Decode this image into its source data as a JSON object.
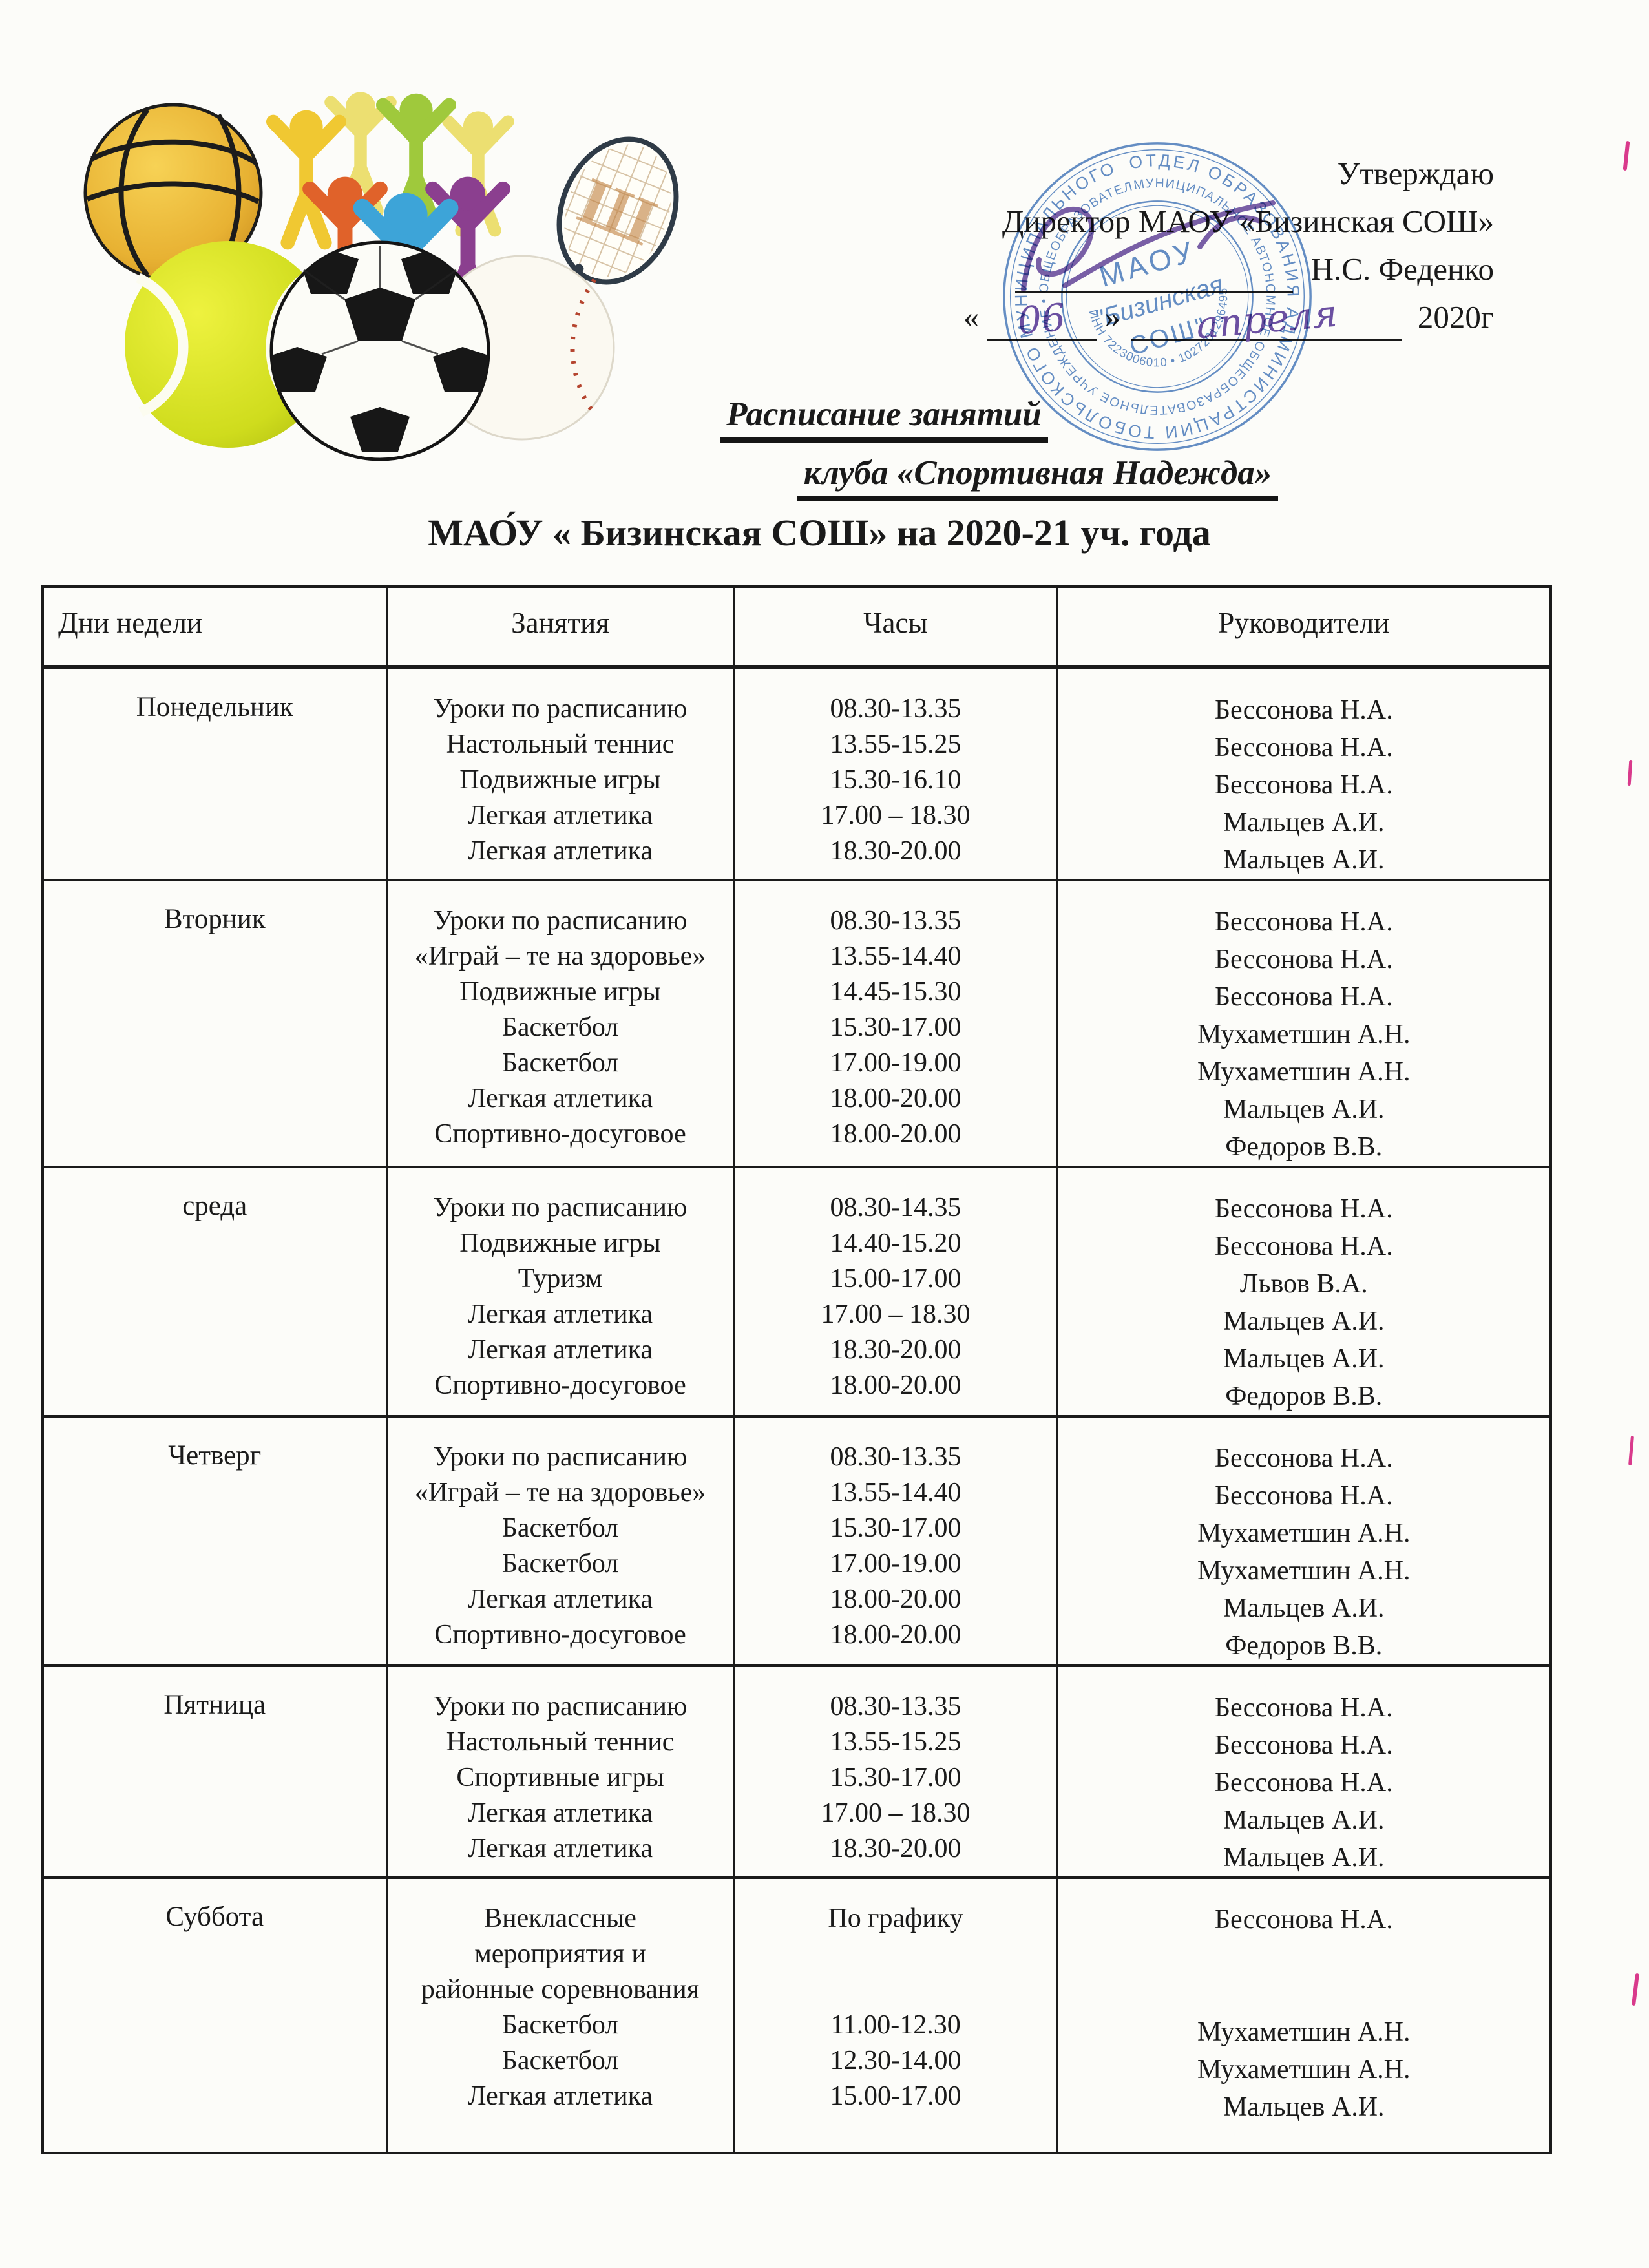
{
  "colors": {
    "paper": "#fcfcf9",
    "ink": "#1a1a1a",
    "stamp_blue": "#4f7fc1",
    "signature_purple": "#6b4fa1",
    "table_border": "#1b1b1b"
  },
  "artwork": {
    "items": [
      "basketball",
      "people-figures",
      "tennis-racket",
      "tennis-ball",
      "baseball",
      "soccer-ball"
    ],
    "racket_letter": "Ш"
  },
  "approval": {
    "approve_line": "Утверждаю",
    "director_line": "Директор МАОУ «Бизинская СОШ»",
    "director_name": "Н.С. Феденко",
    "quote_open": "«",
    "quote_close": "»",
    "day_handwritten": "06",
    "month_handwritten": "апреля",
    "year": "2020г"
  },
  "stamp": {
    "ring_outer": "ОТДЕЛ ОБРАЗОВАНИЯ АДМИНИСТРАЦИИ ТОБОЛЬСКОГО МУНИЦИПАЛЬНОГО РАЙОНА • ",
    "ring_inner": "МУНИЦИПАЛЬНОЕ АВТОНОМНОЕ ОБЩЕОБРАЗОВАТЕЛЬНОЕ УЧРЕЖДЕНИЕ • ОБЩЕОБРАЗОВАТЕЛЬНАЯ ШКОЛА ",
    "ring_numbers": "ИНН 7223006010 • 1027201296495 •",
    "center_line1": "МАОУ",
    "center_line2": "\"Бизинская",
    "center_line3": "СОШ\""
  },
  "title": {
    "line1": "Расписание  занятий",
    "line2": "клуба «Спортивная Надежда»",
    "line3": "МАО́У « Бизинская СОШ» на 2020-21 уч. года"
  },
  "table": {
    "headers": [
      "Дни недели",
      "Занятия",
      "Часы",
      "Руководители"
    ],
    "rows": [
      {
        "day": "Понедельник",
        "activities": [
          "Уроки по расписанию",
          "Настольный теннис",
          "Подвижные игры",
          "Легкая атлетика",
          "Легкая атлетика"
        ],
        "hours": [
          "08.30-13.35",
          "13.55-15.25",
          "15.30-16.10",
          "17.00 – 18.30",
          "18.30-20.00"
        ],
        "leaders": [
          "Бессонова Н.А.",
          "Бессонова Н.А.",
          "Бессонова Н.А.",
          "Мальцев А.И.",
          "Мальцев А.И."
        ]
      },
      {
        "day": "Вторник",
        "activities": [
          "Уроки по расписанию",
          "«Играй – те на здоровье»",
          "Подвижные игры",
          "Баскетбол",
          "Баскетбол",
          "Легкая атлетика",
          "Спортивно-досуговое"
        ],
        "hours": [
          "08.30-13.35",
          "13.55-14.40",
          "14.45-15.30",
          "15.30-17.00",
          "17.00-19.00",
          "18.00-20.00",
          "18.00-20.00"
        ],
        "leaders": [
          "Бессонова Н.А.",
          "Бессонова Н.А.",
          "Бессонова Н.А.",
          "Мухаметшин А.Н.",
          "Мухаметшин А.Н.",
          "Мальцев А.И.",
          "Федоров В.В."
        ]
      },
      {
        "day": "среда",
        "activities": [
          "Уроки по расписанию",
          "Подвижные игры",
          "Туризм",
          "Легкая атлетика",
          "Легкая атлетика",
          "Спортивно-досуговое"
        ],
        "hours": [
          "08.30-14.35",
          "14.40-15.20",
          "15.00-17.00",
          "17.00 – 18.30",
          "18.30-20.00",
          "18.00-20.00"
        ],
        "leaders": [
          "Бессонова Н.А.",
          "Бессонова Н.А.",
          "Львов В.А.",
          "Мальцев А.И.",
          "Мальцев А.И.",
          "Федоров В.В."
        ]
      },
      {
        "day": "Четверг",
        "activities": [
          "Уроки по расписанию",
          "«Играй – те на здоровье»",
          "Баскетбол",
          "Баскетбол",
          "Легкая атлетика",
          "Спортивно-досуговое"
        ],
        "hours": [
          "08.30-13.35",
          "13.55-14.40",
          "15.30-17.00",
          "17.00-19.00",
          "18.00-20.00",
          "18.00-20.00"
        ],
        "leaders": [
          "Бессонова Н.А.",
          "Бессонова Н.А.",
          "Мухаметшин А.Н.",
          "Мухаметшин А.Н.",
          "Мальцев А.И.",
          "Федоров В.В."
        ]
      },
      {
        "day": "Пятница",
        "activities": [
          "Уроки по расписанию",
          "Настольный теннис",
          "Спортивные игры",
          "Легкая атлетика",
          "Легкая атлетика"
        ],
        "hours": [
          "08.30-13.35",
          "13.55-15.25",
          "15.30-17.00",
          "17.00 – 18.30",
          "18.30-20.00"
        ],
        "leaders": [
          "Бессонова Н.А.",
          "Бессонова Н.А.",
          "Бессонова Н.А.",
          "Мальцев А.И.",
          "Мальцев А.И."
        ]
      },
      {
        "day": "Суббота",
        "activities": [
          "Внеклассные",
          "мероприятия и",
          "районные соревнования",
          "Баскетбол",
          "Баскетбол",
          "Легкая атлетика"
        ],
        "hours": [
          "По графику",
          "",
          "",
          "11.00-12.30",
          "12.30-14.00",
          "15.00-17.00"
        ],
        "leaders": [
          "Бессонова Н.А.",
          "",
          "",
          "Мухаметшин А.Н.",
          "Мухаметшин А.Н.",
          "Мальцев А.И."
        ]
      }
    ]
  }
}
